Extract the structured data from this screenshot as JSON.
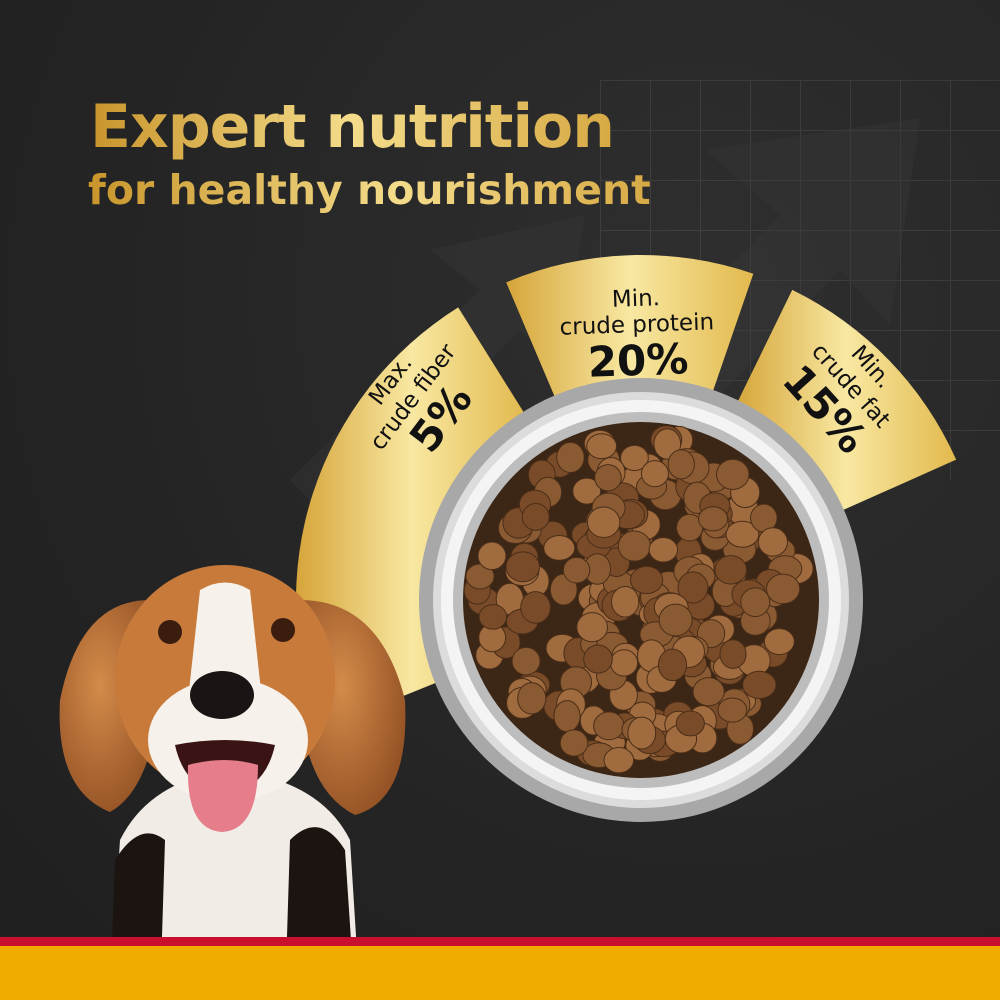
{
  "headline": {
    "title": "Expert nutrition",
    "subtitle": "for healthy nourishment"
  },
  "nutrients": [
    {
      "qualifier": "Max.",
      "name": "crude fiber",
      "value": "5%"
    },
    {
      "qualifier": "Min.",
      "name": "crude protein",
      "value": "20%"
    },
    {
      "qualifier": "Min.",
      "name": "crude fat",
      "value": "15%"
    }
  ],
  "colors": {
    "background": "#262626",
    "gold_light": "#f7e59b",
    "gold_dark": "#c9952c",
    "stripe_red": "#c8102e",
    "stripe_yellow": "#f0ad00"
  }
}
